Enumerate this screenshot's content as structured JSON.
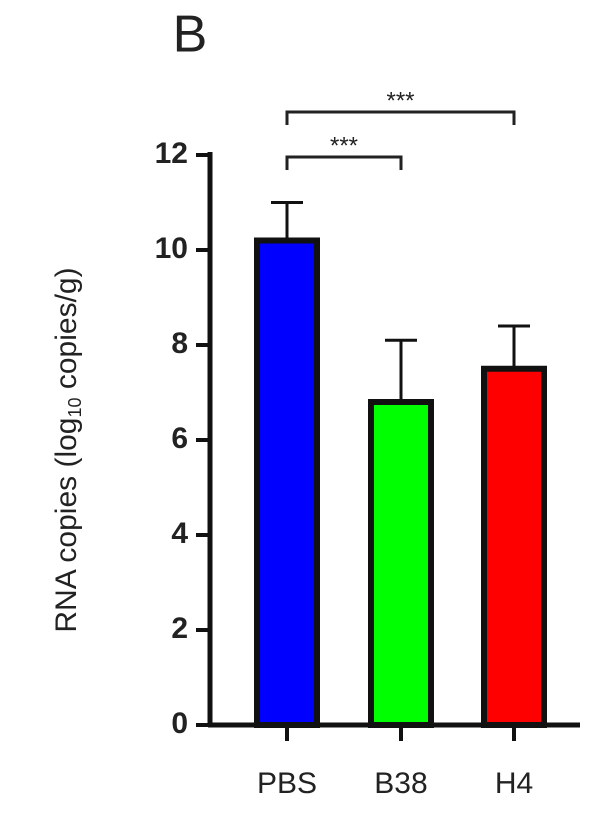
{
  "chart_data": {
    "type": "bar",
    "panel_label": "B",
    "y_label": {
      "text": "RNA copies (log",
      "subscript": "10",
      "suffix": " copies/g)"
    },
    "categories": [
      "PBS",
      "B38",
      "H4"
    ],
    "values": [
      10.2,
      6.8,
      7.5
    ],
    "errors": [
      0.8,
      1.3,
      0.9
    ],
    "colors": [
      "#0000ff",
      "#00ff00",
      "#ff0000"
    ],
    "ylim": [
      0,
      12
    ],
    "yticks": [
      0,
      2,
      4,
      6,
      8,
      10,
      12
    ],
    "annotations": [
      {
        "text": "***",
        "from": 0,
        "to": 1
      },
      {
        "text": "***",
        "from": 0,
        "to": 2
      }
    ]
  }
}
